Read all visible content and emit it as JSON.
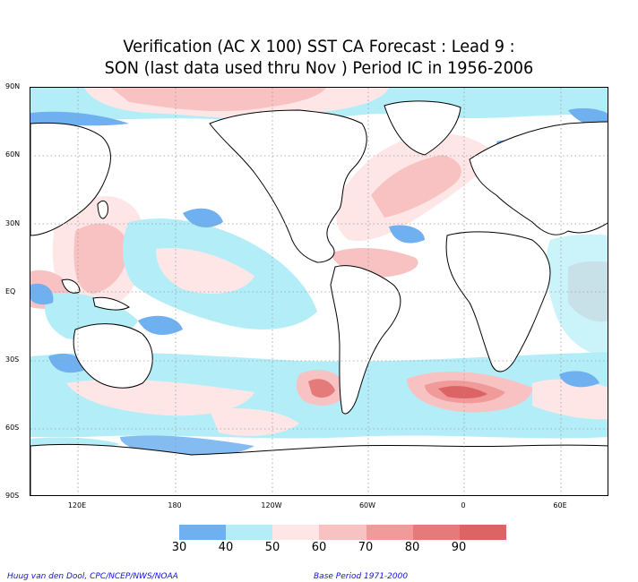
{
  "title_line1": "Verification (AC X 100) SST CA Forecast : Lead 9 :",
  "title_line2": "SON (last data used thru Nov ) Period IC in 1956-2006",
  "lat_labels": [
    "90N",
    "60N",
    "30N",
    "EQ",
    "30S",
    "60S",
    "90S"
  ],
  "lon_labels": [
    "120E",
    "180",
    "120W",
    "60W",
    "0",
    "60E"
  ],
  "colorbar": {
    "colors": [
      "#6fb0f0",
      "#b3eef8",
      "#ffe6e6",
      "#f8c2c2",
      "#f09a9a",
      "#e47a7a",
      "#dc6464"
    ],
    "labels": [
      "30",
      "40",
      "50",
      "60",
      "70",
      "80",
      "90"
    ]
  },
  "credit_left": "Huug van den Dool, CPC/NCEP/NWS/NOAA",
  "credit_right": "Base Period 1971-2000"
}
